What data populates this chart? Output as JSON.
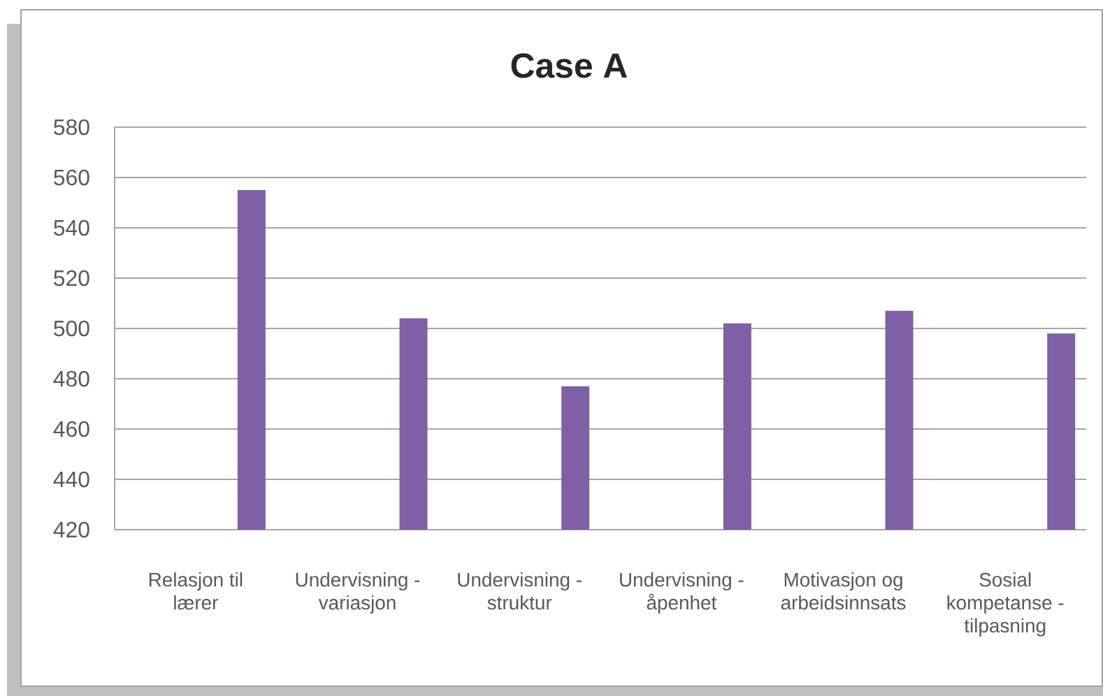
{
  "chart_data": {
    "type": "bar",
    "title": "Case A",
    "categories": [
      "Relasjon til lærer",
      "Undervisning - variasjon",
      "Undervisning - struktur",
      "Undervisning - åpenhet",
      "Motivasjon og arbeidsinnsats",
      "Sosial kompetanse - tilpasning"
    ],
    "values": [
      555,
      504,
      477,
      502,
      507,
      498
    ],
    "color": "#7f5fa6",
    "ylim": [
      420,
      580
    ],
    "yticks": [
      420,
      440,
      460,
      480,
      500,
      520,
      540,
      560,
      580
    ],
    "grid": "y"
  }
}
